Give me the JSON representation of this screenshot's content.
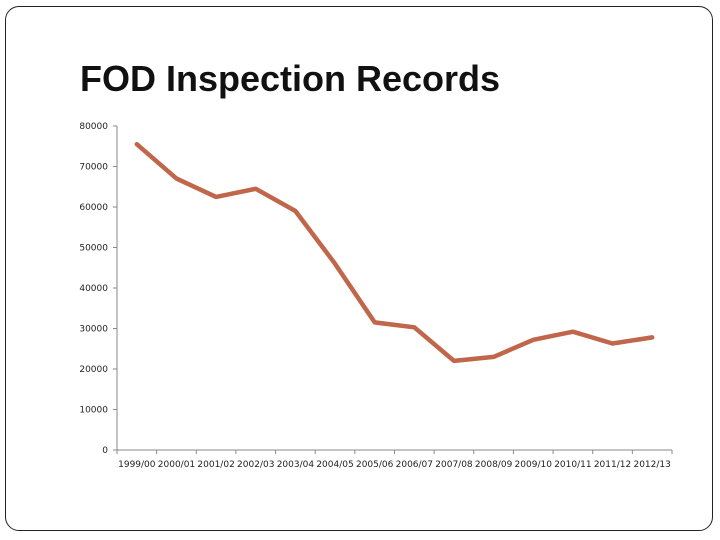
{
  "title": "FOD Inspection Records",
  "colors": {
    "line": "#c0664a",
    "axis": "#8a8a8a",
    "frame": "#222222"
  },
  "chart_data": {
    "type": "line",
    "title": "FOD Inspection Records",
    "xlabel": "",
    "ylabel": "",
    "categories": [
      "1999/00",
      "2000/01",
      "2001/02",
      "2002/03",
      "2003/04",
      "2004/05",
      "2005/06",
      "2006/07",
      "2007/08",
      "2008/09",
      "2009/10",
      "2010/11",
      "2011/12",
      "2012/13"
    ],
    "series": [
      {
        "values": [
          75500,
          67000,
          62500,
          64500,
          59000,
          46000,
          31500,
          30300,
          22000,
          23000,
          27200,
          29200,
          26300,
          27800
        ]
      }
    ],
    "ylim": [
      0,
      80000
    ],
    "yticks": [
      0,
      10000,
      20000,
      30000,
      40000,
      50000,
      60000,
      70000,
      80000
    ],
    "grid": false,
    "legend": "none"
  }
}
